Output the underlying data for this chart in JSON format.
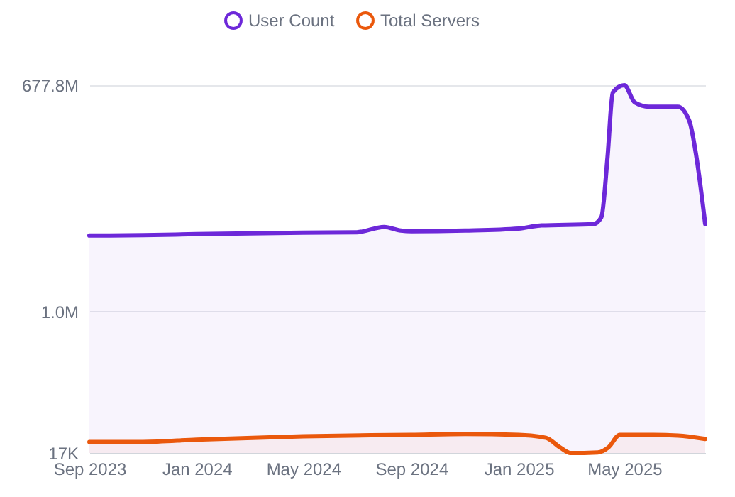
{
  "chart_data": {
    "type": "area",
    "log": "y",
    "grid": "y",
    "legend": "top",
    "xlim": [
      "2023-09-01",
      "2025-08-01"
    ],
    "xticks": [
      {
        "value": "2023-09-01",
        "label": "Sep 2023"
      },
      {
        "value": "2024-01-01",
        "label": "Jan 2024"
      },
      {
        "value": "2024-05-01",
        "label": "May 2024"
      },
      {
        "value": "2024-09-01",
        "label": "Sep 2024"
      },
      {
        "value": "2025-01-01",
        "label": "Jan 2025"
      },
      {
        "value": "2025-05-01",
        "label": "May 2025"
      }
    ],
    "ylim": [
      17000,
      677800000
    ],
    "yticks": [
      {
        "value": 17000,
        "label": "17K"
      },
      {
        "value": 1000000,
        "label": "1.0M"
      },
      {
        "value": 677800000,
        "label": "677.8M"
      }
    ],
    "series": [
      {
        "name": "User Count",
        "color": "#6d28d9",
        "x": [
          "2023-09-01",
          "2023-11-01",
          "2024-01-01",
          "2024-05-01",
          "2024-07-01",
          "2024-08-01",
          "2024-08-20",
          "2024-09-01",
          "2024-11-01",
          "2025-01-01",
          "2025-01-25",
          "2025-03-27",
          "2025-04-05",
          "2025-04-12",
          "2025-04-18",
          "2025-05-01",
          "2025-05-13",
          "2025-05-29",
          "2025-07-01",
          "2025-07-14",
          "2025-07-22",
          "2025-08-01"
        ],
        "values": [
          8900000,
          9000000,
          9300000,
          9700000,
          9800000,
          11400000,
          10300000,
          10100000,
          10300000,
          10900000,
          11900000,
          12400000,
          15200000,
          86000000,
          552000000,
          677800000,
          413000000,
          366000000,
          366000000,
          242000000,
          86000000,
          12400000
        ]
      },
      {
        "name": "Total Servers",
        "color": "#ea580c",
        "x": [
          "2023-09-01",
          "2023-11-01",
          "2024-01-01",
          "2024-05-01",
          "2024-09-01",
          "2024-11-01",
          "2025-01-01",
          "2025-02-01",
          "2025-02-17",
          "2025-03-01",
          "2025-04-01",
          "2025-04-13",
          "2025-04-26",
          "2025-06-03",
          "2025-07-01",
          "2025-08-01"
        ],
        "values": [
          23400,
          23400,
          25000,
          27500,
          28700,
          29400,
          28700,
          26300,
          20000,
          17000,
          17300,
          20000,
          28700,
          28700,
          28100,
          25500
        ]
      }
    ]
  }
}
